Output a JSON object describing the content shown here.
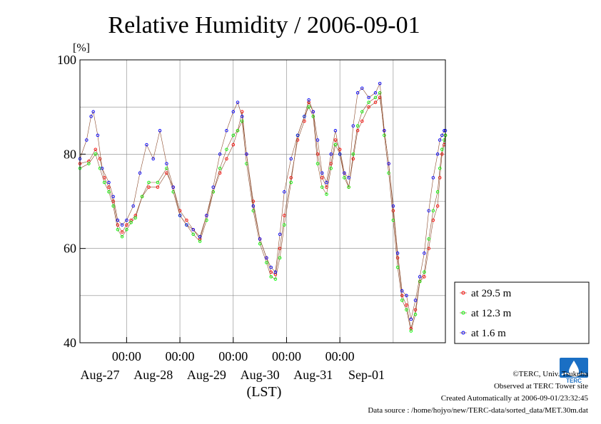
{
  "chart_data": {
    "type": "line",
    "title": "Relative Humidity / 2006-09-01",
    "ylabel": "[%]",
    "xlabel": "(LST)",
    "ylim": [
      40,
      100
    ],
    "yticks": [
      40,
      60,
      80,
      100
    ],
    "xlim": [
      "2006-08-26 03:00",
      "2006-09-01 23:30"
    ],
    "x_time_ticks": [
      "00:00",
      "00:00",
      "00:00",
      "00:00",
      "00:00"
    ],
    "x_date_labels": [
      "Aug-27",
      "Aug-28",
      "Aug-29",
      "Aug-30",
      "Aug-31",
      "Sep-01"
    ],
    "grid": true,
    "legend_position": "right",
    "series": [
      {
        "name": "at 29.5 m",
        "color": "#ff0000",
        "points": [
          [
            "2006-08-26 03:00",
            78
          ],
          [
            "2006-08-26 07:00",
            78.5
          ],
          [
            "2006-08-26 10:00",
            81
          ],
          [
            "2006-08-26 12:00",
            79
          ],
          [
            "2006-08-26 14:00",
            75
          ],
          [
            "2006-08-26 16:00",
            73
          ],
          [
            "2006-08-26 18:00",
            70
          ],
          [
            "2006-08-26 20:00",
            65
          ],
          [
            "2006-08-26 22:00",
            63.5
          ],
          [
            "2006-08-27 00:00",
            65
          ],
          [
            "2006-08-27 02:00",
            66
          ],
          [
            "2006-08-27 04:00",
            67
          ],
          [
            "2006-08-27 07:00",
            71
          ],
          [
            "2006-08-27 10:00",
            73
          ],
          [
            "2006-08-27 14:00",
            73
          ],
          [
            "2006-08-27 18:00",
            76
          ],
          [
            "2006-08-27 21:00",
            73
          ],
          [
            "2006-08-28 00:00",
            68
          ],
          [
            "2006-08-28 03:00",
            66
          ],
          [
            "2006-08-28 06:00",
            64
          ],
          [
            "2006-08-28 09:00",
            62
          ],
          [
            "2006-08-28 12:00",
            67
          ],
          [
            "2006-08-28 15:00",
            72
          ],
          [
            "2006-08-28 18:00",
            76
          ],
          [
            "2006-08-28 21:00",
            79
          ],
          [
            "2006-08-29 00:00",
            82
          ],
          [
            "2006-08-29 02:00",
            85
          ],
          [
            "2006-08-29 04:00",
            89
          ],
          [
            "2006-08-29 06:00",
            80
          ],
          [
            "2006-08-29 09:00",
            70
          ],
          [
            "2006-08-29 12:00",
            62
          ],
          [
            "2006-08-29 15:00",
            58
          ],
          [
            "2006-08-29 17:00",
            55
          ],
          [
            "2006-08-29 19:00",
            54.5
          ],
          [
            "2006-08-29 21:00",
            60
          ],
          [
            "2006-08-29 23:00",
            67
          ],
          [
            "2006-08-30 02:00",
            75
          ],
          [
            "2006-08-30 05:00",
            83
          ],
          [
            "2006-08-30 08:00",
            87
          ],
          [
            "2006-08-30 10:00",
            91
          ],
          [
            "2006-08-30 12:00",
            89
          ],
          [
            "2006-08-30 14:00",
            80
          ],
          [
            "2006-08-30 16:00",
            75
          ],
          [
            "2006-08-30 18:00",
            73
          ],
          [
            "2006-08-30 20:00",
            78
          ],
          [
            "2006-08-30 22:00",
            83
          ],
          [
            "2006-08-31 00:00",
            81
          ],
          [
            "2006-08-31 02:00",
            76
          ],
          [
            "2006-08-31 04:00",
            73
          ],
          [
            "2006-08-31 06:00",
            79
          ],
          [
            "2006-08-31 08:00",
            85
          ],
          [
            "2006-08-31 10:00",
            87
          ],
          [
            "2006-08-31 13:00",
            90
          ],
          [
            "2006-08-31 16:00",
            91
          ],
          [
            "2006-08-31 18:00",
            92
          ],
          [
            "2006-08-31 20:00",
            85
          ],
          [
            "2006-08-31 22:00",
            78
          ],
          [
            "2006-09-01 00:00",
            68
          ],
          [
            "2006-09-01 02:00",
            58
          ],
          [
            "2006-09-01 04:00",
            50
          ],
          [
            "2006-09-01 06:00",
            48
          ],
          [
            "2006-09-01 08:00",
            43
          ],
          [
            "2006-09-01 10:00",
            47
          ],
          [
            "2006-09-01 12:00",
            53
          ],
          [
            "2006-09-01 14:00",
            54
          ],
          [
            "2006-09-01 16:00",
            60
          ],
          [
            "2006-09-01 18:00",
            66
          ],
          [
            "2006-09-01 20:00",
            69
          ],
          [
            "2006-09-01 21:00",
            75
          ],
          [
            "2006-09-01 22:00",
            80
          ],
          [
            "2006-09-01 23:00",
            82
          ],
          [
            "2006-09-01 23:30",
            84
          ]
        ]
      },
      {
        "name": "at 12.3 m",
        "color": "#00ff00",
        "points": [
          [
            "2006-08-26 03:00",
            77
          ],
          [
            "2006-08-26 07:00",
            78
          ],
          [
            "2006-08-26 10:00",
            80
          ],
          [
            "2006-08-26 12:00",
            77
          ],
          [
            "2006-08-26 14:00",
            74
          ],
          [
            "2006-08-26 16:00",
            72
          ],
          [
            "2006-08-26 18:00",
            69
          ],
          [
            "2006-08-26 20:00",
            64
          ],
          [
            "2006-08-26 22:00",
            62.5
          ],
          [
            "2006-08-27 00:00",
            64
          ],
          [
            "2006-08-27 02:00",
            65.5
          ],
          [
            "2006-08-27 04:00",
            66.5
          ],
          [
            "2006-08-27 07:00",
            71
          ],
          [
            "2006-08-27 10:00",
            74
          ],
          [
            "2006-08-27 14:00",
            74
          ],
          [
            "2006-08-27 18:00",
            77
          ],
          [
            "2006-08-27 21:00",
            72
          ],
          [
            "2006-08-28 00:00",
            67
          ],
          [
            "2006-08-28 03:00",
            65
          ],
          [
            "2006-08-28 06:00",
            63
          ],
          [
            "2006-08-28 09:00",
            61.5
          ],
          [
            "2006-08-28 12:00",
            66
          ],
          [
            "2006-08-28 15:00",
            72
          ],
          [
            "2006-08-28 18:00",
            77
          ],
          [
            "2006-08-28 21:00",
            81
          ],
          [
            "2006-08-29 00:00",
            84
          ],
          [
            "2006-08-29 02:00",
            85
          ],
          [
            "2006-08-29 04:00",
            87
          ],
          [
            "2006-08-29 06:00",
            78
          ],
          [
            "2006-08-29 09:00",
            68
          ],
          [
            "2006-08-29 12:00",
            61
          ],
          [
            "2006-08-29 15:00",
            57
          ],
          [
            "2006-08-29 17:00",
            54
          ],
          [
            "2006-08-29 19:00",
            53.5
          ],
          [
            "2006-08-29 21:00",
            58
          ],
          [
            "2006-08-29 23:00",
            65
          ],
          [
            "2006-08-30 02:00",
            74
          ],
          [
            "2006-08-30 05:00",
            84
          ],
          [
            "2006-08-30 08:00",
            88
          ],
          [
            "2006-08-30 10:00",
            90
          ],
          [
            "2006-08-30 12:00",
            88
          ],
          [
            "2006-08-30 14:00",
            78
          ],
          [
            "2006-08-30 16:00",
            73
          ],
          [
            "2006-08-30 18:00",
            71.5
          ],
          [
            "2006-08-30 20:00",
            77
          ],
          [
            "2006-08-30 22:00",
            82
          ],
          [
            "2006-08-31 00:00",
            80
          ],
          [
            "2006-08-31 02:00",
            75
          ],
          [
            "2006-08-31 04:00",
            73
          ],
          [
            "2006-08-31 06:00",
            80
          ],
          [
            "2006-08-31 08:00",
            86
          ],
          [
            "2006-08-31 10:00",
            89
          ],
          [
            "2006-08-31 13:00",
            91
          ],
          [
            "2006-08-31 16:00",
            92
          ],
          [
            "2006-08-31 18:00",
            93
          ],
          [
            "2006-08-31 20:00",
            84
          ],
          [
            "2006-08-31 22:00",
            76
          ],
          [
            "2006-09-01 00:00",
            66
          ],
          [
            "2006-09-01 02:00",
            56
          ],
          [
            "2006-09-01 04:00",
            49
          ],
          [
            "2006-09-01 06:00",
            47
          ],
          [
            "2006-09-01 08:00",
            42.5
          ],
          [
            "2006-09-01 10:00",
            46
          ],
          [
            "2006-09-01 12:00",
            53
          ],
          [
            "2006-09-01 14:00",
            55
          ],
          [
            "2006-09-01 16:00",
            62
          ],
          [
            "2006-09-01 18:00",
            68
          ],
          [
            "2006-09-01 20:00",
            72
          ],
          [
            "2006-09-01 21:00",
            77
          ],
          [
            "2006-09-01 22:00",
            81
          ],
          [
            "2006-09-01 23:00",
            83
          ],
          [
            "2006-09-01 23:30",
            84
          ]
        ]
      },
      {
        "name": "at 1.6 m",
        "color": "#0000ff",
        "points": [
          [
            "2006-08-26 03:00",
            79
          ],
          [
            "2006-08-26 06:00",
            83
          ],
          [
            "2006-08-26 08:00",
            88
          ],
          [
            "2006-08-26 09:00",
            89
          ],
          [
            "2006-08-26 11:00",
            84
          ],
          [
            "2006-08-26 13:00",
            77
          ],
          [
            "2006-08-26 16:00",
            74
          ],
          [
            "2006-08-26 18:00",
            71
          ],
          [
            "2006-08-26 20:00",
            66
          ],
          [
            "2006-08-26 22:00",
            65
          ],
          [
            "2006-08-27 00:00",
            66
          ],
          [
            "2006-08-27 03:00",
            69
          ],
          [
            "2006-08-27 06:00",
            76
          ],
          [
            "2006-08-27 09:00",
            82
          ],
          [
            "2006-08-27 12:00",
            79
          ],
          [
            "2006-08-27 15:00",
            85
          ],
          [
            "2006-08-27 18:00",
            78
          ],
          [
            "2006-08-27 21:00",
            73
          ],
          [
            "2006-08-28 00:00",
            67
          ],
          [
            "2006-08-28 03:00",
            65
          ],
          [
            "2006-08-28 06:00",
            64
          ],
          [
            "2006-08-28 09:00",
            62.5
          ],
          [
            "2006-08-28 12:00",
            67
          ],
          [
            "2006-08-28 15:00",
            73
          ],
          [
            "2006-08-28 18:00",
            80
          ],
          [
            "2006-08-28 21:00",
            85
          ],
          [
            "2006-08-29 00:00",
            89
          ],
          [
            "2006-08-29 02:00",
            91
          ],
          [
            "2006-08-29 04:00",
            88
          ],
          [
            "2006-08-29 06:00",
            80
          ],
          [
            "2006-08-29 09:00",
            69
          ],
          [
            "2006-08-29 12:00",
            62
          ],
          [
            "2006-08-29 15:00",
            58
          ],
          [
            "2006-08-29 17:00",
            56
          ],
          [
            "2006-08-29 19:00",
            55
          ],
          [
            "2006-08-29 21:00",
            63
          ],
          [
            "2006-08-29 23:00",
            72
          ],
          [
            "2006-08-30 02:00",
            79
          ],
          [
            "2006-08-30 05:00",
            84
          ],
          [
            "2006-08-30 08:00",
            88
          ],
          [
            "2006-08-30 10:00",
            91.5
          ],
          [
            "2006-08-30 12:00",
            89
          ],
          [
            "2006-08-30 14:00",
            83
          ],
          [
            "2006-08-30 16:00",
            76
          ],
          [
            "2006-08-30 18:00",
            74
          ],
          [
            "2006-08-30 20:00",
            80
          ],
          [
            "2006-08-30 22:00",
            85
          ],
          [
            "2006-08-31 00:00",
            80
          ],
          [
            "2006-08-31 02:00",
            76
          ],
          [
            "2006-08-31 04:00",
            75
          ],
          [
            "2006-08-31 06:00",
            86
          ],
          [
            "2006-08-31 08:00",
            93
          ],
          [
            "2006-08-31 10:00",
            94
          ],
          [
            "2006-08-31 13:00",
            92
          ],
          [
            "2006-08-31 16:00",
            93
          ],
          [
            "2006-08-31 18:00",
            95
          ],
          [
            "2006-08-31 20:00",
            85
          ],
          [
            "2006-08-31 22:00",
            78
          ],
          [
            "2006-09-01 00:00",
            69
          ],
          [
            "2006-09-01 02:00",
            59
          ],
          [
            "2006-09-01 04:00",
            51
          ],
          [
            "2006-09-01 06:00",
            50
          ],
          [
            "2006-09-01 08:00",
            45
          ],
          [
            "2006-09-01 10:00",
            49
          ],
          [
            "2006-09-01 12:00",
            54
          ],
          [
            "2006-09-01 14:00",
            59
          ],
          [
            "2006-09-01 16:00",
            68
          ],
          [
            "2006-09-01 18:00",
            75
          ],
          [
            "2006-09-01 20:00",
            80
          ],
          [
            "2006-09-01 21:00",
            83
          ],
          [
            "2006-09-01 22:00",
            84
          ],
          [
            "2006-09-01 23:00",
            85
          ],
          [
            "2006-09-01 23:30",
            85
          ]
        ]
      }
    ]
  },
  "footer": {
    "copyright": "©TERC, Univ. Tsukuba",
    "observed": "Observed at TERC Tower site",
    "created": "Created Automatically at 2006-09-01/23:32:45",
    "source": "Data source : /home/hojyo/new/TERC-data/sorted_data/MET.30m.dat"
  },
  "logo": {
    "text": "TERC",
    "color": "#1a6fc4"
  }
}
